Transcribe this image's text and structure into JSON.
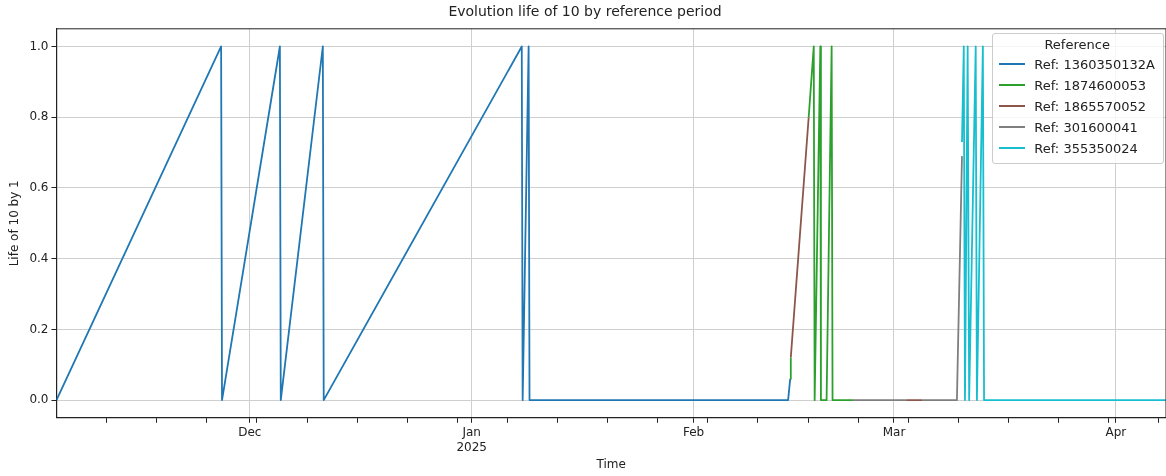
{
  "chart_data": {
    "type": "line",
    "title": "Evolution life of 10 by reference period",
    "xlabel": "Time",
    "ylabel": "Life of 10 by 1",
    "legend_title": "Reference",
    "legend": "top right",
    "grid": true,
    "marker": "none",
    "line_style": "solid",
    "xlim": [
      "2024-11-04",
      "2025-04-08"
    ],
    "xticks": [
      {
        "value": "2024-11-11",
        "label": null
      },
      {
        "value": "2024-11-18",
        "label": null
      },
      {
        "value": "2024-11-25",
        "label": null
      },
      {
        "value": "2024-12-01",
        "label": "Dec"
      },
      {
        "value": "2024-12-02",
        "label": null
      },
      {
        "value": "2024-12-09",
        "label": null
      },
      {
        "value": "2024-12-16",
        "label": null
      },
      {
        "value": "2024-12-23",
        "label": null
      },
      {
        "value": "2024-12-30",
        "label": null
      },
      {
        "value": "2025-01-01",
        "label": "Jan\n2025"
      },
      {
        "value": "2025-01-06",
        "label": null
      },
      {
        "value": "2025-01-13",
        "label": null
      },
      {
        "value": "2025-01-20",
        "label": null
      },
      {
        "value": "2025-01-27",
        "label": null
      },
      {
        "value": "2025-02-01",
        "label": "Feb"
      },
      {
        "value": "2025-02-03",
        "label": null
      },
      {
        "value": "2025-02-10",
        "label": null
      },
      {
        "value": "2025-02-17",
        "label": null
      },
      {
        "value": "2025-02-24",
        "label": null
      },
      {
        "value": "2025-03-01",
        "label": "Mar"
      },
      {
        "value": "2025-03-03",
        "label": null
      },
      {
        "value": "2025-03-10",
        "label": null
      },
      {
        "value": "2025-03-17",
        "label": null
      },
      {
        "value": "2025-03-24",
        "label": null
      },
      {
        "value": "2025-03-31",
        "label": null
      },
      {
        "value": "2025-04-01",
        "label": "Apr"
      },
      {
        "value": "2025-04-07",
        "label": null
      }
    ],
    "ylim": [
      -0.05,
      1.05
    ],
    "yticks": [
      {
        "value": 0,
        "label": "0.0"
      },
      {
        "value": 0.2,
        "label": "0.2"
      },
      {
        "value": 0.4,
        "label": "0.4"
      },
      {
        "value": 0.6,
        "label": "0.6"
      },
      {
        "value": 0.8,
        "label": "0.8"
      },
      {
        "value": 1,
        "label": "1.0"
      }
    ],
    "series": [
      {
        "name": "Ref: 1360350132A",
        "color": "#1f77b4",
        "x": [
          "2024-11-04",
          "2024-11-27T00:00",
          "2024-11-27T03:00",
          "2024-12-05T05:00",
          "2024-12-05T08:00",
          "2024-12-11T05:00",
          "2024-12-11T08:00",
          "2025-01-08T00:00",
          "2025-01-08T03:00",
          "2025-01-08T23:00",
          "2025-01-09T02:00",
          "2025-02-14T05:00",
          "2025-02-14T12:00"
        ],
        "values": [
          0,
          1,
          0,
          1,
          0,
          1,
          0,
          1,
          0,
          1,
          0,
          0,
          0.06
        ]
      },
      {
        "name": "Ref: 1874600053",
        "color": "#2ca02c",
        "x": [
          "2025-02-14T12:00",
          "2025-02-14T14:00",
          "2025-02-16T00:00",
          "2025-02-17T02:00",
          "2025-02-17T19:00",
          "2025-02-17T22:00",
          "2025-02-18T17:00",
          "2025-02-18T19:00",
          "2025-02-19T14:00",
          "2025-02-20T07:00",
          "2025-02-20T10:00",
          "2025-02-23T07:00"
        ],
        "values": [
          0.06,
          0.12,
          null,
          0.8,
          1,
          0,
          1,
          0,
          0,
          1,
          0,
          0
        ]
      },
      {
        "name": "Ref: 1865570052",
        "color": "#8c564b",
        "x": [
          "2025-02-14T14:00",
          "2025-02-17T02:00",
          "2025-02-28T00:00",
          "2025-03-02T17:00",
          "2025-03-04T22:00"
        ],
        "values": [
          0.12,
          0.8,
          null,
          0,
          0
        ]
      },
      {
        "name": "Ref: 301600041",
        "color": "#7f7f7f",
        "x": [
          "2025-02-23T07:00",
          "2025-03-02T17:00",
          "2025-03-03T12:00",
          "2025-03-04T22:00",
          "2025-03-09T19:00",
          "2025-03-10T12:00"
        ],
        "values": [
          0,
          0,
          null,
          0,
          0,
          0.69
        ]
      },
      {
        "name": "Ref: 355350024",
        "color": "#17becf",
        "x": [
          "2025-03-10T12:00",
          "2025-03-10T18:00",
          "2025-03-10T22:00",
          "2025-03-11T07:00",
          "2025-03-11T12:00",
          "2025-03-12T10:00",
          "2025-03-12T14:00",
          "2025-03-13T10:00",
          "2025-03-13T14:00",
          "2025-04-08"
        ],
        "values": [
          0.73,
          1,
          0,
          1,
          0,
          1,
          0,
          1,
          0,
          0
        ]
      }
    ]
  }
}
